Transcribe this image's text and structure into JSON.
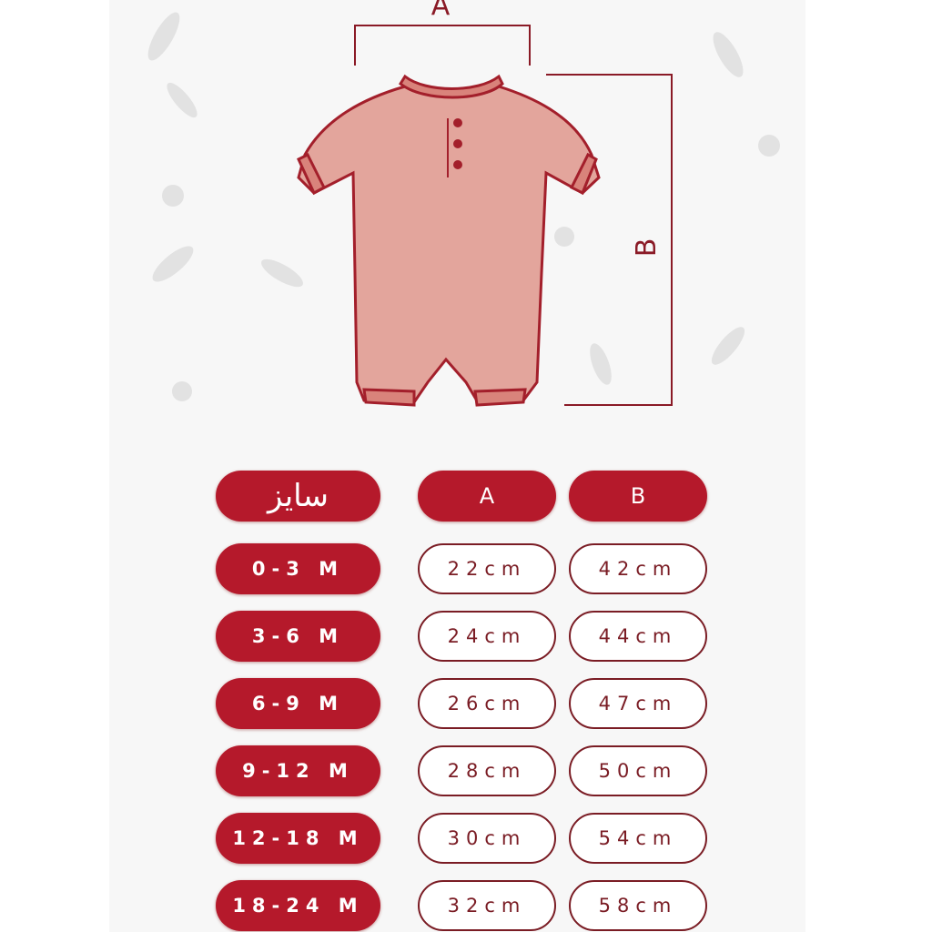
{
  "diagram": {
    "label_a": "A",
    "label_b": "B"
  },
  "colors": {
    "accent_red": "#b5192b",
    "outline": "#7a1c24",
    "romper_fill": "#e3a59c",
    "romper_stroke": "#a31f2b"
  },
  "table": {
    "headers": [
      "سایز",
      "A",
      "B"
    ],
    "rows": [
      {
        "size": "0-3 M",
        "a": "22cm",
        "b": "42cm"
      },
      {
        "size": "3-6 M",
        "a": "24cm",
        "b": "44cm"
      },
      {
        "size": "6-9 M",
        "a": "26cm",
        "b": "47cm"
      },
      {
        "size": "9-12 M",
        "a": "28cm",
        "b": "50cm"
      },
      {
        "size": "12-18 M",
        "a": "30cm",
        "b": "54cm"
      },
      {
        "size": "18-24 M",
        "a": "32cm",
        "b": "58cm"
      }
    ]
  }
}
